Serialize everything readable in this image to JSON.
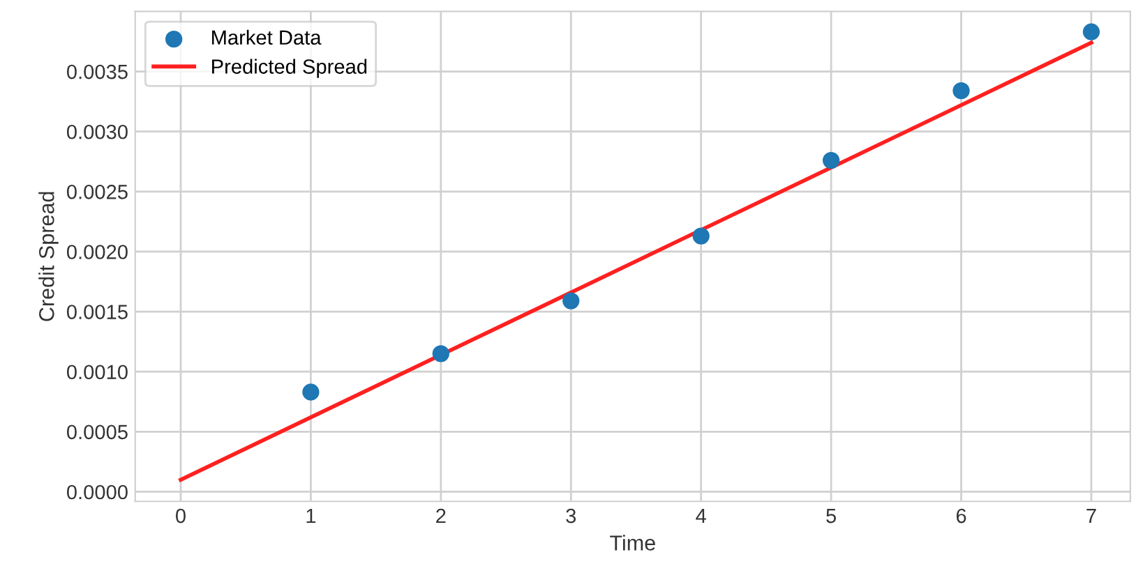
{
  "chart_data": {
    "type": "scatter",
    "xlabel": "Time",
    "ylabel": "Credit Spread",
    "series": [
      {
        "name": "Market Data",
        "color": "#1f77b4",
        "marker": "circle",
        "x": [
          1,
          2,
          3,
          4,
          5,
          6,
          7
        ],
        "values": [
          0.00083,
          0.00115,
          0.00159,
          0.00213,
          0.00276,
          0.00334,
          0.00383
        ]
      },
      {
        "name": "Predicted Spread",
        "type": "line",
        "color": "#ff2020",
        "marker": "none",
        "line_style": "solid",
        "x": [
          0,
          7
        ],
        "values": [
          0.0001,
          0.00374
        ]
      }
    ],
    "xlim": [
      -0.35,
      7.3
    ],
    "xticks": [
      0,
      1,
      2,
      3,
      4,
      5,
      6,
      7
    ],
    "ylim": [
      -8e-05,
      0.004
    ],
    "yticks": [
      {
        "value": 0,
        "label": "0.0000"
      },
      {
        "value": 0.0005,
        "label": "0.0005"
      },
      {
        "value": 0.001,
        "label": "0.0010"
      },
      {
        "value": 0.0015,
        "label": "0.0015"
      },
      {
        "value": 0.002,
        "label": "0.0020"
      },
      {
        "value": 0.0025,
        "label": "0.0025"
      },
      {
        "value": 0.003,
        "label": "0.0030"
      },
      {
        "value": 0.0035,
        "label": "0.0035"
      }
    ],
    "grid": true,
    "legend": "top left"
  }
}
